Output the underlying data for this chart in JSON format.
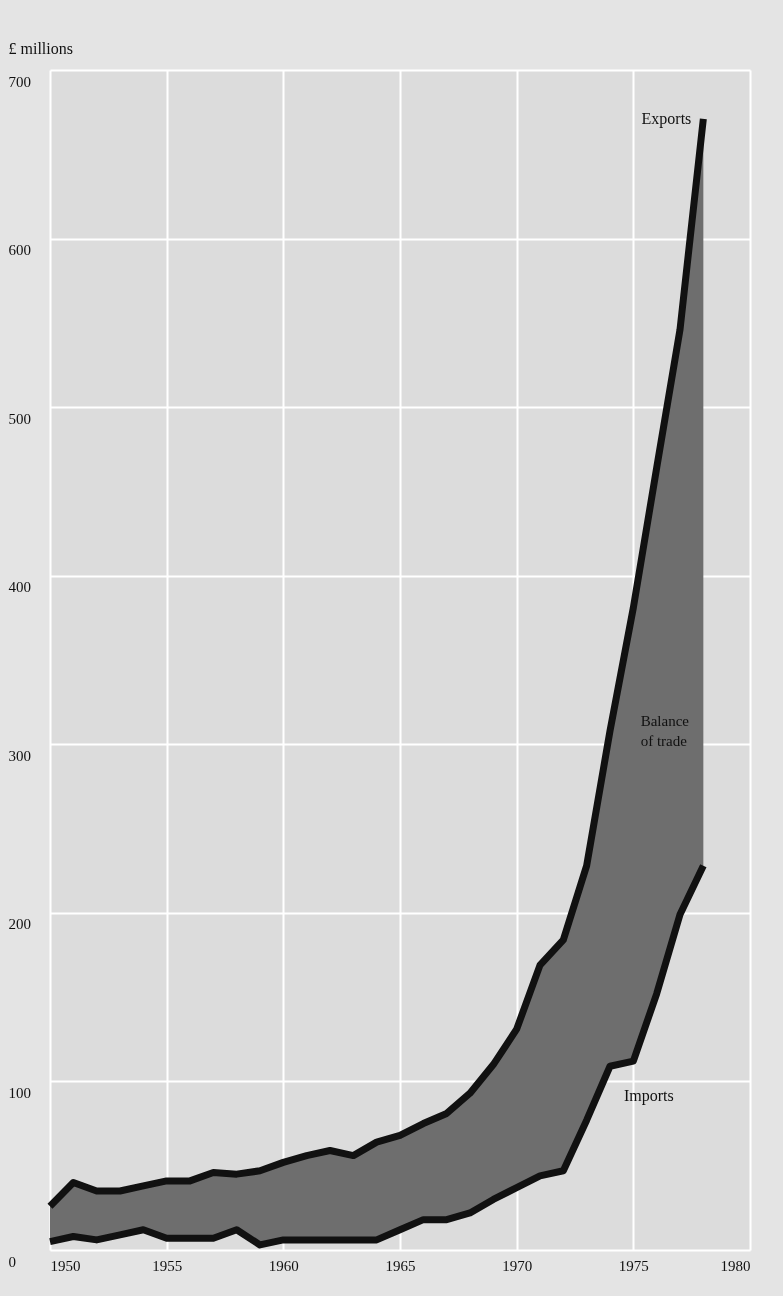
{
  "chart_data": {
    "type": "line",
    "ylabel": "£ millions",
    "x": [
      1950,
      1951,
      1952,
      1953,
      1954,
      1955,
      1956,
      1957,
      1958,
      1959,
      1960,
      1961,
      1962,
      1963,
      1964,
      1965,
      1966,
      1967,
      1968,
      1969,
      1970,
      1971,
      1972,
      1973,
      1974,
      1975,
      1976,
      1977,
      1978
    ],
    "series": [
      {
        "name": "Exports",
        "color": "#111111",
        "values": [
          26,
          40,
          35,
          35,
          38,
          41,
          41,
          46,
          45,
          47,
          52,
          56,
          59,
          56,
          64,
          68,
          75,
          81,
          93,
          110,
          131,
          169,
          184,
          228,
          308,
          381,
          464,
          546,
          671
        ],
        "lower": [
          5,
          8,
          6,
          9,
          12,
          7,
          7,
          7,
          12,
          3,
          6,
          6,
          6,
          6,
          6,
          12,
          18,
          18,
          22,
          30,
          37,
          44,
          47,
          77,
          109,
          112,
          152,
          199,
          228
        ],
        "upper": [
          26,
          40,
          35,
          35,
          38,
          41,
          41,
          46,
          45,
          47,
          52,
          56,
          59,
          56,
          64,
          68,
          75,
          81,
          93,
          110,
          131,
          169,
          184,
          228,
          308,
          381,
          464,
          546,
          671
        ]
      },
      {
        "name": "Imports",
        "color": "#111111",
        "values": [
          5,
          8,
          6,
          9,
          12,
          7,
          7,
          7,
          12,
          3,
          6,
          6,
          6,
          6,
          6,
          12,
          18,
          18,
          22,
          30,
          37,
          44,
          47,
          77,
          109,
          112,
          152,
          199,
          228
        ]
      }
    ],
    "annotations": [
      "Balance of trade"
    ],
    "xlim": [
      1950,
      1980
    ],
    "xticks": [
      1950,
      1955,
      1960,
      1965,
      1970,
      1975,
      1980
    ],
    "ylim": [
      0,
      700
    ],
    "yticks": [
      0,
      100,
      200,
      300,
      400,
      500,
      600,
      700
    ],
    "grid": true,
    "marker": "none",
    "line_style": "solid"
  }
}
